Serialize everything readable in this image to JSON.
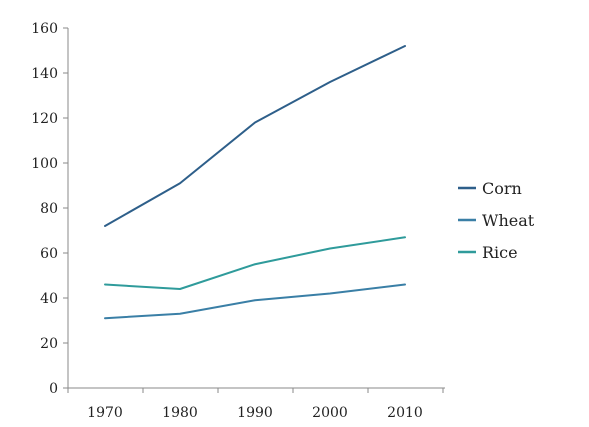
{
  "chart_data": {
    "type": "line",
    "title": "",
    "xlabel": "",
    "ylabel": "",
    "x": [
      "1970",
      "1980",
      "1990",
      "2000",
      "2010"
    ],
    "ylim": [
      0,
      160
    ],
    "y_ticks": [
      0,
      20,
      40,
      60,
      80,
      100,
      120,
      140,
      160
    ],
    "grid": false,
    "legend_position": "right",
    "series": [
      {
        "name": "Corn",
        "color": "#2e5f8a",
        "values": [
          72,
          91,
          118,
          136,
          152
        ]
      },
      {
        "name": "Wheat",
        "color": "#3a7fa6",
        "values": [
          31,
          33,
          39,
          42,
          46
        ]
      },
      {
        "name": "Rice",
        "color": "#2f9b9b",
        "values": [
          46,
          44,
          55,
          62,
          67
        ]
      }
    ]
  }
}
